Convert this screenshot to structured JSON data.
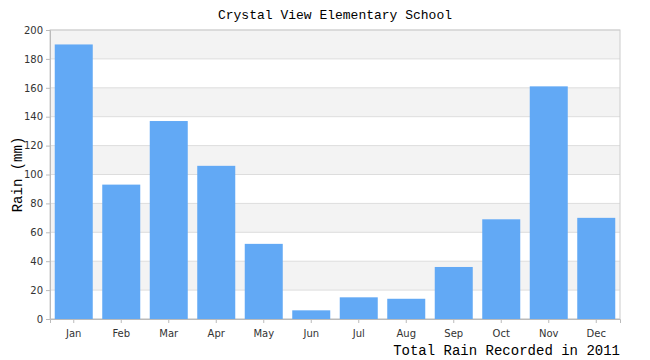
{
  "chart_data": {
    "type": "bar",
    "title": "Crystal View Elementary School",
    "x_label": "Total Rain Recorded in 2011",
    "y_label": "Rain (mm)",
    "categories": [
      "Jan",
      "Feb",
      "Mar",
      "Apr",
      "May",
      "Jun",
      "Jul",
      "Aug",
      "Sep",
      "Oct",
      "Nov",
      "Dec"
    ],
    "values": [
      190,
      93,
      137,
      106,
      52,
      6,
      15,
      14,
      36,
      69,
      161,
      70
    ],
    "color": "#62a9f5",
    "ylim": [
      0,
      200
    ],
    "yticks": [
      0,
      20,
      40,
      60,
      80,
      100,
      120,
      140,
      160,
      180,
      200
    ],
    "grid": true
  }
}
